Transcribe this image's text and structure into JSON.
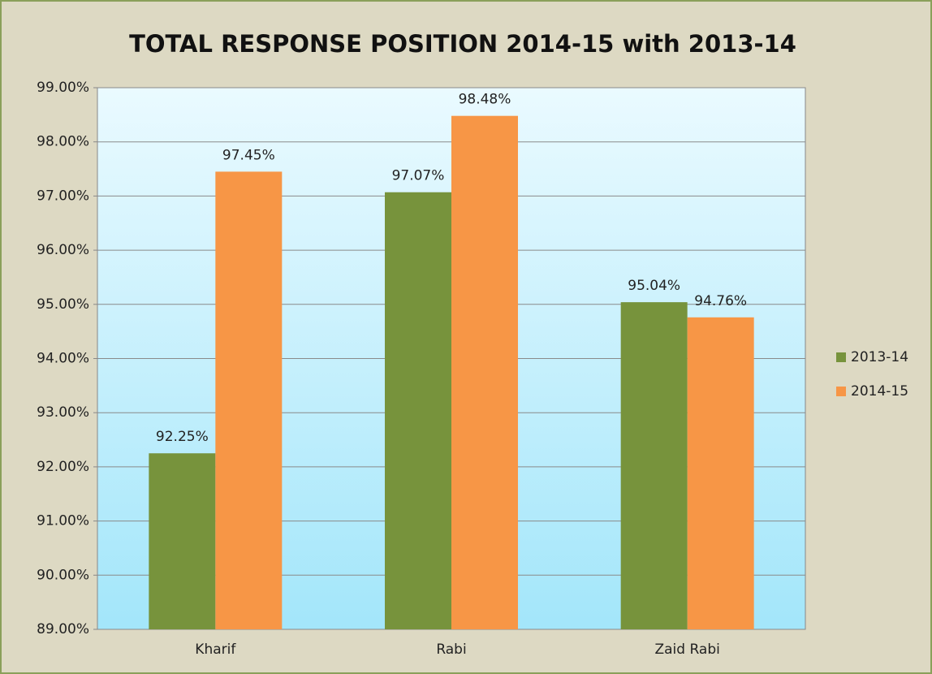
{
  "chart_data": {
    "type": "bar",
    "title": "TOTAL RESPONSE POSITION 2014-15 with 2013-14",
    "categories": [
      "Kharif",
      "Rabi",
      "Zaid Rabi"
    ],
    "series": [
      {
        "name": "2013-14",
        "color": "#77933c",
        "values": [
          92.25,
          97.07,
          95.04
        ],
        "value_labels": [
          "92.25%",
          "97.07%",
          "95.04%"
        ]
      },
      {
        "name": "2014-15",
        "color": "#f79646",
        "values": [
          97.45,
          98.48,
          94.76
        ],
        "value_labels": [
          "97.45%",
          "98.48%",
          "94.76%"
        ]
      }
    ],
    "ylim": [
      89,
      99
    ],
    "yticks": [
      {
        "value": 89,
        "label": "89.00%"
      },
      {
        "value": 90,
        "label": "90.00%"
      },
      {
        "value": 91,
        "label": "91.00%"
      },
      {
        "value": 92,
        "label": "92.00%"
      },
      {
        "value": 93,
        "label": "93.00%"
      },
      {
        "value": 94,
        "label": "94.00%"
      },
      {
        "value": 95,
        "label": "95.00%"
      },
      {
        "value": 96,
        "label": "96.00%"
      },
      {
        "value": 97,
        "label": "97.00%"
      },
      {
        "value": 98,
        "label": "98.00%"
      },
      {
        "value": 99,
        "label": "99.00%"
      }
    ],
    "grid": true,
    "legend": "right"
  }
}
